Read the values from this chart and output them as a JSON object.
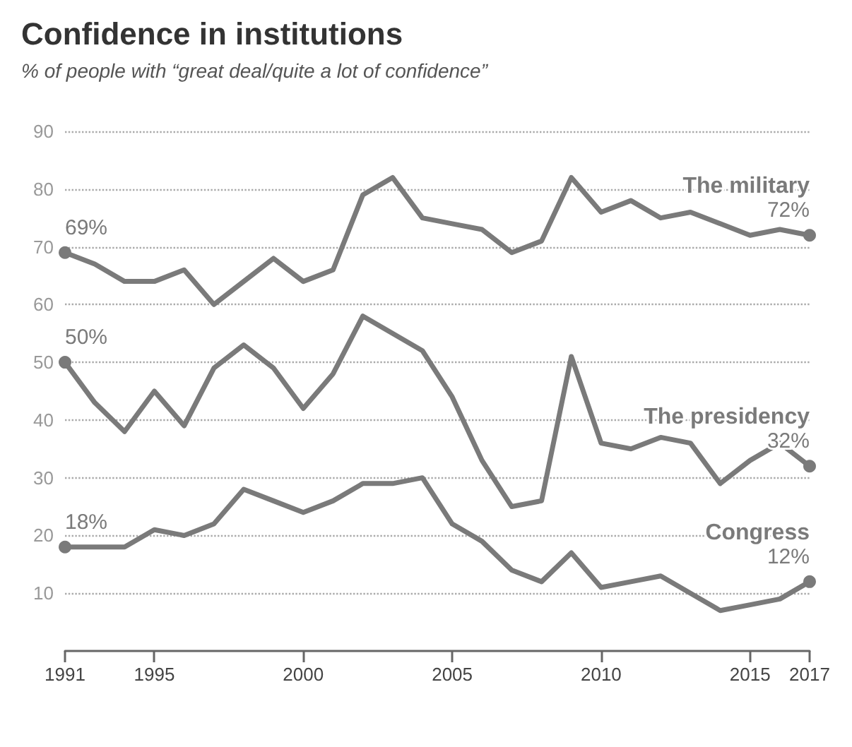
{
  "chart_data": {
    "type": "line",
    "title": "Confidence in institutions",
    "subtitle": "% of people with “great deal/quite a lot of confidence”",
    "categories": [
      "1991",
      null,
      null,
      "1995",
      null,
      null,
      null,
      null,
      "2000",
      null,
      null,
      null,
      null,
      "2005",
      null,
      null,
      null,
      null,
      "2010",
      null,
      null,
      null,
      null,
      "2015",
      null,
      "2017"
    ],
    "series": [
      {
        "name": "The military",
        "color": "#7a7a7a",
        "values": [
          69,
          67,
          64,
          64,
          66,
          60,
          64,
          68,
          64,
          66,
          79,
          82,
          75,
          74,
          73,
          69,
          71,
          82,
          76,
          78,
          75,
          76,
          74,
          72,
          73,
          72
        ],
        "value_labels": [
          "69%",
          null,
          null,
          null,
          null,
          null,
          null,
          null,
          null,
          null,
          null,
          null,
          null,
          null,
          null,
          null,
          null,
          null,
          null,
          null,
          null,
          null,
          null,
          null,
          null,
          "72%"
        ]
      },
      {
        "name": "The presidency",
        "color": "#7a7a7a",
        "values": [
          50,
          43,
          38,
          45,
          39,
          49,
          53,
          49,
          42,
          48,
          58,
          55,
          52,
          44,
          33,
          25,
          26,
          51,
          36,
          35,
          37,
          36,
          29,
          33,
          36,
          32
        ],
        "value_labels": [
          "50%",
          null,
          null,
          null,
          null,
          null,
          null,
          null,
          null,
          null,
          null,
          null,
          null,
          null,
          null,
          null,
          null,
          null,
          null,
          null,
          null,
          null,
          null,
          null,
          null,
          "32%"
        ]
      },
      {
        "name": "Congress",
        "color": "#7a7a7a",
        "values": [
          18,
          18,
          18,
          21,
          20,
          22,
          28,
          26,
          24,
          26,
          29,
          29,
          30,
          22,
          19,
          14,
          12,
          17,
          11,
          12,
          13,
          10,
          7,
          8,
          9,
          12
        ],
        "value_labels": [
          "18%",
          null,
          null,
          null,
          null,
          null,
          null,
          null,
          null,
          null,
          null,
          null,
          null,
          null,
          null,
          null,
          null,
          null,
          null,
          null,
          null,
          null,
          null,
          null,
          null,
          "12%"
        ]
      }
    ],
    "ylim": [
      0,
      90
    ],
    "yticks": [
      10,
      20,
      30,
      40,
      50,
      60,
      70,
      80,
      90
    ],
    "grid": "y",
    "legend": false,
    "line_style": "solid"
  }
}
